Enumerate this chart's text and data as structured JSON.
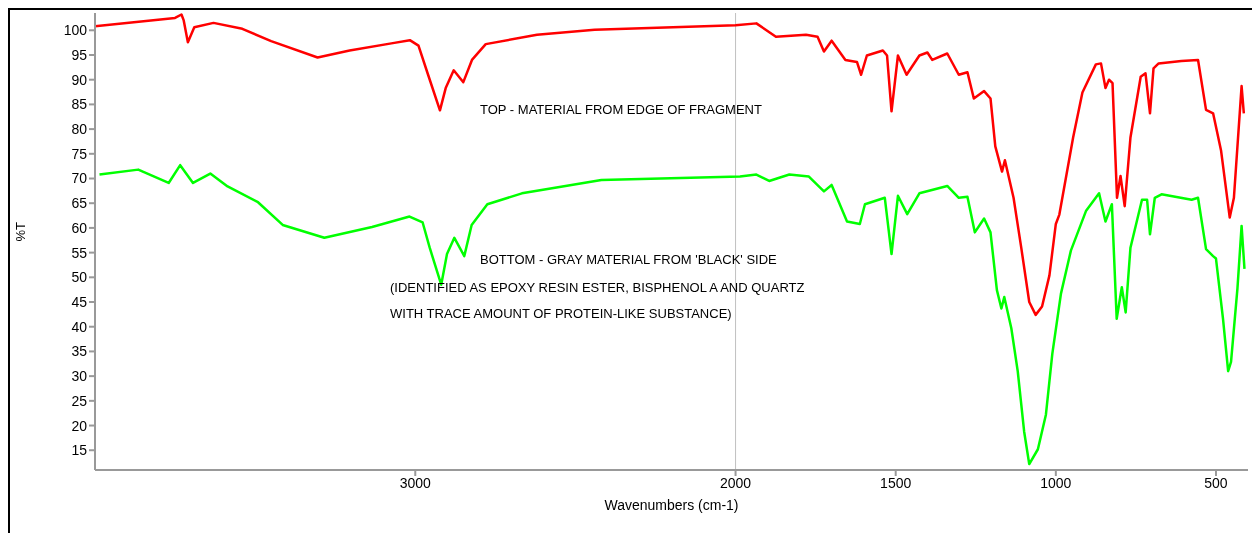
{
  "chart_data": {
    "type": "line",
    "xlabel": "Wavenumbers (cm-1)",
    "ylabel": "%T",
    "annotations": [
      "TOP - MATERIAL FROM EDGE OF FRAGMENT",
      "BOTTOM - GRAY MATERIAL FROM 'BLACK' SIDE",
      "(IDENTIFIED AS EPOXY RESIN ESTER, BISPHENOL A AND QUARTZ",
      "WITH TRACE AMOUNT OF PROTEIN-LIKE SUBSTANCE)"
    ],
    "xlim": [
      4000,
      400
    ],
    "xticks": [
      3000,
      2000,
      1500,
      1000,
      500
    ],
    "ylim": [
      11,
      103.5
    ],
    "yticks": [
      15,
      20,
      25,
      30,
      35,
      40,
      45,
      50,
      55,
      60,
      65,
      70,
      75,
      80,
      85,
      90,
      95,
      100
    ],
    "grid": false,
    "marker": "none",
    "line_style": "solid",
    "ref_lines": [
      {
        "axis": "x",
        "value": 2000,
        "color": "#c0c0c0"
      }
    ],
    "series": [
      {
        "color": "#ff0000",
        "x": [
          4000,
          3750,
          3730,
          3723,
          3710,
          3690,
          3630,
          3540,
          3450,
          3305,
          3205,
          3070,
          3017,
          2990,
          2960,
          2923,
          2905,
          2880,
          2850,
          2823,
          2780,
          2620,
          2440,
          2000,
          1935,
          1874,
          1780,
          1744,
          1724,
          1700,
          1657,
          1621,
          1608,
          1590,
          1540,
          1527,
          1513,
          1493,
          1466,
          1426,
          1401,
          1386,
          1339,
          1303,
          1276,
          1256,
          1224,
          1204,
          1189,
          1168,
          1159,
          1132,
          1108,
          1083,
          1063,
          1043,
          1020,
          1000,
          989,
          946,
          917,
          875,
          859,
          845,
          834,
          823,
          809,
          798,
          785,
          767,
          735,
          720,
          706,
          695,
          679,
          608,
          556,
          531,
          509,
          484,
          457,
          444,
          420,
          413
        ],
        "values": [
          100.8,
          102.5,
          103.2,
          102,
          97.6,
          100.6,
          101.5,
          100.3,
          97.8,
          94.5,
          95.9,
          97.4,
          98,
          96.9,
          91,
          83.8,
          88.3,
          91.9,
          89.5,
          94,
          97.2,
          99.1,
          100.1,
          101,
          101.4,
          98.7,
          99.1,
          98.7,
          95.7,
          97.9,
          94,
          93.6,
          91,
          94.9,
          95.9,
          94.9,
          83.6,
          94.9,
          91,
          94.9,
          95.5,
          94,
          95.3,
          91,
          91.5,
          86.2,
          87.7,
          86.2,
          76.5,
          71.4,
          73.7,
          66.1,
          56,
          45,
          42.4,
          44.1,
          50.4,
          60.8,
          62.7,
          78.3,
          87.4,
          93.1,
          93.3,
          88.3,
          90,
          89.3,
          66.1,
          70.5,
          64.4,
          78.3,
          90.6,
          91.3,
          83.2,
          92.3,
          93.3,
          93.8,
          94,
          83.9,
          83.2,
          75.6,
          62.1,
          66.1,
          88.7,
          83.2
        ]
      },
      {
        "color": "#00ff00",
        "x": [
          3986,
          3865,
          3770,
          3734,
          3694,
          3640,
          3586,
          3491,
          3414,
          3284,
          3135,
          3018,
          2977,
          2955,
          2919,
          2901,
          2878,
          2847,
          2824,
          2775,
          2667,
          2559,
          2419,
          1986,
          1935,
          1895,
          1832,
          1771,
          1724,
          1700,
          1652,
          1612,
          1596,
          1534,
          1513,
          1493,
          1464,
          1426,
          1339,
          1303,
          1276,
          1253,
          1224,
          1204,
          1184,
          1170,
          1161,
          1139,
          1119,
          1099,
          1083,
          1056,
          1031,
          1011,
          984,
          953,
          906,
          865,
          845,
          825,
          810,
          794,
          782,
          767,
          731,
          715,
          706,
          691,
          670,
          576,
          556,
          531,
          509,
          500,
          478,
          462,
          453,
          433,
          420,
          411
        ],
        "values": [
          70.8,
          71.8,
          69.1,
          72.7,
          69.1,
          71,
          68.4,
          65.2,
          60.6,
          58,
          60.2,
          62.3,
          61.1,
          56,
          48.5,
          54.7,
          58,
          54.3,
          60.6,
          64.8,
          67,
          68.2,
          69.7,
          70.4,
          70.8,
          69.5,
          70.8,
          70.4,
          67.4,
          68.7,
          61.3,
          60.8,
          64.8,
          66.1,
          54.7,
          66.5,
          62.8,
          67,
          68.5,
          66.1,
          66.3,
          59.1,
          61.9,
          59.1,
          47.4,
          43.7,
          46,
          39.7,
          31,
          18.8,
          12.2,
          15.2,
          22.2,
          34.5,
          46.7,
          55.4,
          63.4,
          67,
          61.3,
          64.8,
          41.6,
          48,
          42.9,
          56,
          65.7,
          65.7,
          58.7,
          66.1,
          66.8,
          65.7,
          66.1,
          55.7,
          54.3,
          53.8,
          41.6,
          31,
          32.9,
          47.7,
          60.4,
          51.7
        ]
      }
    ]
  }
}
